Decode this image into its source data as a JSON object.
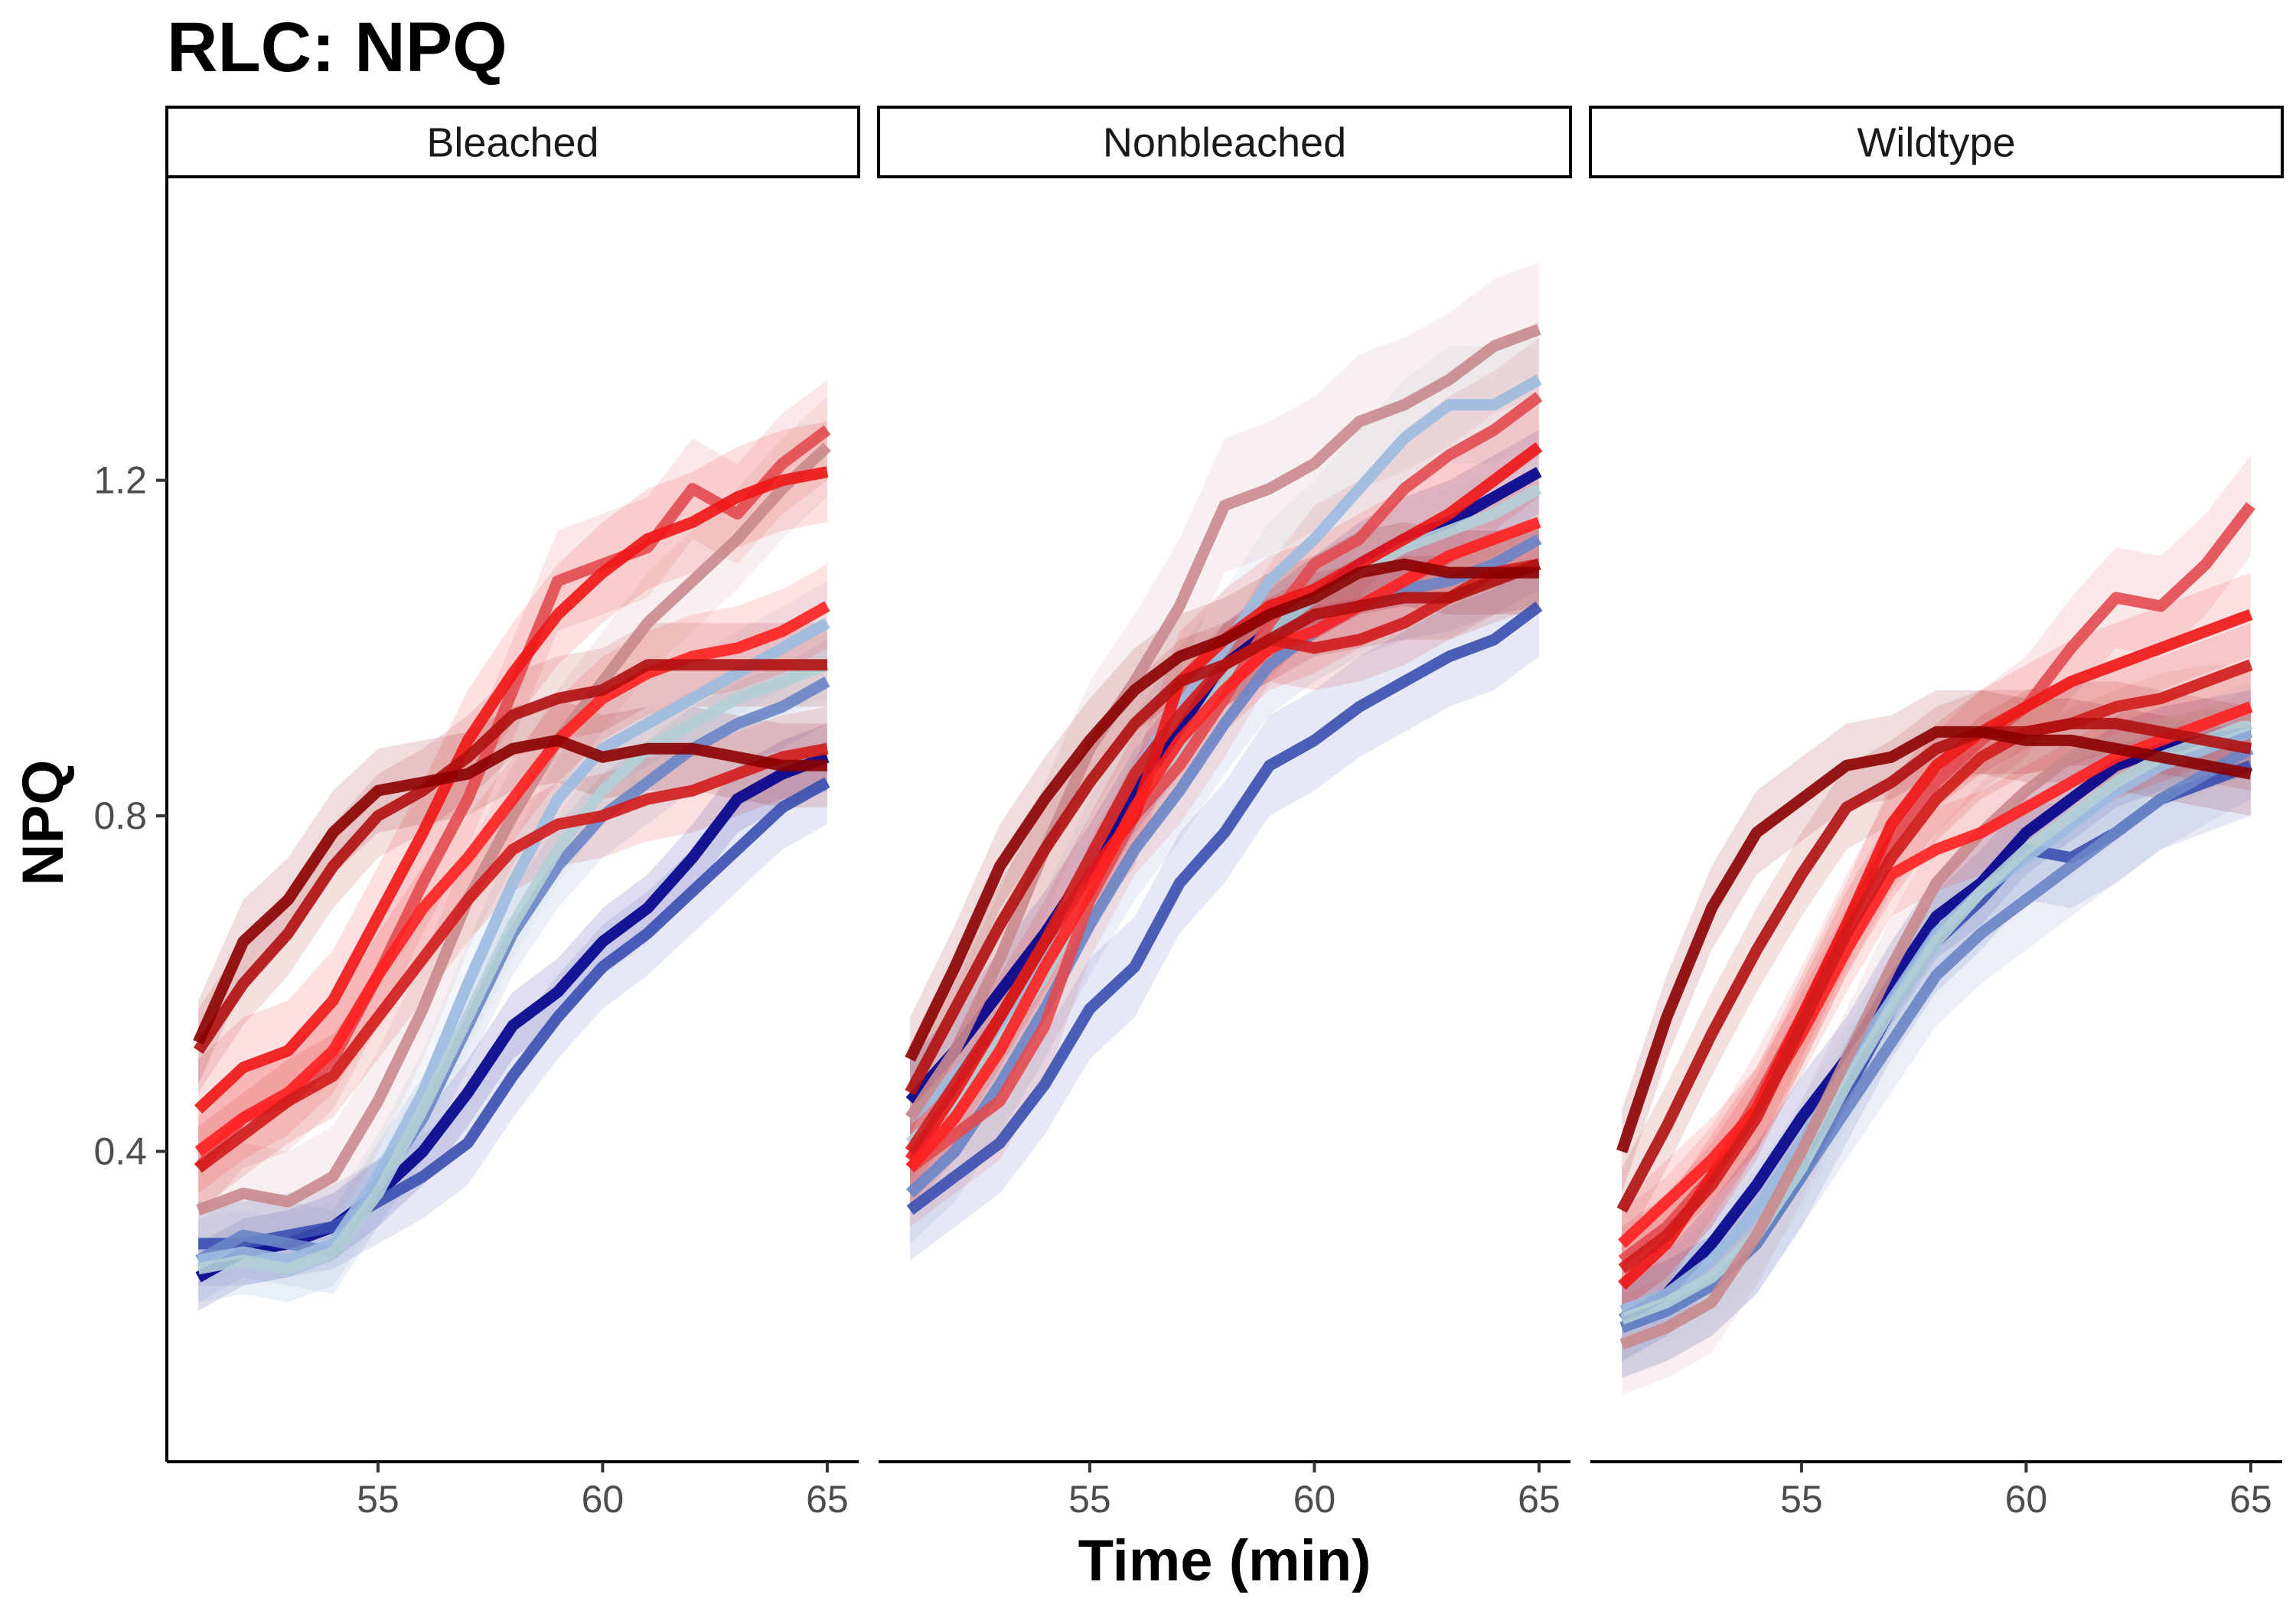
{
  "chart_data": {
    "type": "line",
    "title": "RLC: NPQ",
    "xlabel": "Time (min)",
    "ylabel": "NPQ",
    "xlim": [
      50.3,
      65.7
    ],
    "ylim": [
      0.03,
      1.56
    ],
    "x_ticks": [
      55,
      60,
      65
    ],
    "y_ticks": [
      0.4,
      0.8,
      1.2
    ],
    "grid": false,
    "legend": "none",
    "x": [
      51,
      52,
      53,
      54,
      55,
      56,
      57,
      58,
      59,
      60,
      61,
      62,
      63,
      64,
      65
    ],
    "panels": [
      {
        "label": "Bleached",
        "series": [
          {
            "color": "#00008b",
            "values": [
              0.25,
              0.28,
              0.29,
              0.31,
              0.35,
              0.4,
              0.47,
              0.55,
              0.59,
              0.65,
              0.69,
              0.75,
              0.82,
              0.85,
              0.87
            ],
            "band": 0.04
          },
          {
            "color": "#3a4fb0",
            "values": [
              0.29,
              0.29,
              0.3,
              0.31,
              0.34,
              0.37,
              0.41,
              0.49,
              0.56,
              0.62,
              0.66,
              0.71,
              0.76,
              0.81,
              0.84
            ],
            "band": 0.05
          },
          {
            "color": "#6a85c6",
            "values": [
              0.27,
              0.3,
              0.29,
              0.28,
              0.36,
              0.44,
              0.55,
              0.66,
              0.74,
              0.8,
              0.84,
              0.88,
              0.91,
              0.93,
              0.96
            ],
            "band": 0.05
          },
          {
            "color": "#9bbbe0",
            "values": [
              0.27,
              0.28,
              0.27,
              0.29,
              0.37,
              0.47,
              0.6,
              0.72,
              0.82,
              0.88,
              0.91,
              0.94,
              0.97,
              1.0,
              1.03
            ],
            "band": 0.05
          },
          {
            "color": "#b2cfd6",
            "values": [
              0.26,
              0.27,
              0.26,
              0.28,
              0.35,
              0.45,
              0.56,
              0.67,
              0.76,
              0.83,
              0.88,
              0.91,
              0.94,
              0.96,
              0.98
            ],
            "band": 0.04
          },
          {
            "color": "#c98a8d",
            "values": [
              0.33,
              0.35,
              0.34,
              0.37,
              0.46,
              0.57,
              0.7,
              0.8,
              0.89,
              0.96,
              1.03,
              1.08,
              1.13,
              1.19,
              1.24
            ],
            "band": 0.06
          },
          {
            "color": "#e24a4f",
            "values": [
              0.38,
              0.44,
              0.46,
              0.51,
              0.61,
              0.72,
              0.82,
              0.95,
              1.08,
              1.1,
              1.12,
              1.19,
              1.16,
              1.22,
              1.26
            ],
            "band": 0.06
          },
          {
            "color": "#f01515",
            "values": [
              0.45,
              0.5,
              0.52,
              0.58,
              0.68,
              0.78,
              0.89,
              0.97,
              1.04,
              1.09,
              1.13,
              1.15,
              1.18,
              1.2,
              1.21
            ],
            "band": 0.06
          },
          {
            "color": "#ff2020",
            "values": [
              0.4,
              0.44,
              0.47,
              0.52,
              0.61,
              0.69,
              0.75,
              0.82,
              0.89,
              0.94,
              0.97,
              0.99,
              1.0,
              1.02,
              1.05
            ],
            "band": 0.05
          },
          {
            "color": "#d21b1b",
            "values": [
              0.38,
              0.42,
              0.46,
              0.49,
              0.56,
              0.63,
              0.7,
              0.76,
              0.79,
              0.8,
              0.82,
              0.83,
              0.85,
              0.87,
              0.88
            ],
            "band": 0.05
          },
          {
            "color": "#b01010",
            "values": [
              0.52,
              0.6,
              0.66,
              0.74,
              0.8,
              0.83,
              0.87,
              0.92,
              0.94,
              0.95,
              0.98,
              0.98,
              0.98,
              0.98,
              0.98
            ],
            "band": 0.05
          },
          {
            "color": "#8b0000",
            "values": [
              0.53,
              0.65,
              0.7,
              0.78,
              0.83,
              0.84,
              0.85,
              0.88,
              0.89,
              0.87,
              0.88,
              0.88,
              0.87,
              0.86,
              0.86
            ],
            "band": 0.05
          }
        ]
      },
      {
        "label": "Nonbleached",
        "series": [
          {
            "color": "#00008b",
            "values": [
              0.46,
              0.52,
              0.59,
              0.66,
              0.74,
              0.83,
              0.9,
              0.98,
              1.02,
              1.06,
              1.1,
              1.13,
              1.15,
              1.18,
              1.21
            ],
            "band": 0.05
          },
          {
            "color": "#3a4fb0",
            "values": [
              0.33,
              0.37,
              0.41,
              0.48,
              0.57,
              0.62,
              0.72,
              0.78,
              0.86,
              0.89,
              0.93,
              0.96,
              0.99,
              1.01,
              1.05
            ],
            "band": 0.06
          },
          {
            "color": "#6a85c6",
            "values": [
              0.35,
              0.4,
              0.48,
              0.57,
              0.67,
              0.76,
              0.83,
              0.91,
              0.98,
              1.02,
              1.05,
              1.07,
              1.08,
              1.1,
              1.13
            ],
            "band": 0.06
          },
          {
            "color": "#9bbbe0",
            "values": [
              0.44,
              0.49,
              0.55,
              0.64,
              0.75,
              0.85,
              0.93,
              1.0,
              1.08,
              1.13,
              1.19,
              1.25,
              1.29,
              1.29,
              1.32
            ],
            "band": 0.07
          },
          {
            "color": "#b2cfd6",
            "values": [
              0.41,
              0.46,
              0.53,
              0.61,
              0.71,
              0.8,
              0.88,
              0.96,
              1.02,
              1.06,
              1.09,
              1.12,
              1.14,
              1.16,
              1.19
            ],
            "band": 0.05
          },
          {
            "color": "#c98a8d",
            "values": [
              0.44,
              0.52,
              0.63,
              0.76,
              0.88,
              0.96,
              1.05,
              1.17,
              1.19,
              1.22,
              1.27,
              1.29,
              1.32,
              1.36,
              1.38
            ],
            "band": 0.08
          },
          {
            "color": "#e24a4f",
            "values": [
              0.38,
              0.42,
              0.46,
              0.55,
              0.7,
              0.8,
              0.86,
              0.94,
              1.03,
              1.1,
              1.13,
              1.19,
              1.23,
              1.26,
              1.3
            ],
            "band": 0.07
          },
          {
            "color": "#f01515",
            "values": [
              0.39,
              0.47,
              0.56,
              0.65,
              0.73,
              0.8,
              0.96,
              1.01,
              1.05,
              1.07,
              1.1,
              1.13,
              1.16,
              1.2,
              1.24
            ],
            "band": 0.06
          },
          {
            "color": "#ff2020",
            "values": [
              0.38,
              0.44,
              0.52,
              0.62,
              0.71,
              0.81,
              0.89,
              0.95,
              1.0,
              1.02,
              1.05,
              1.08,
              1.11,
              1.13,
              1.15
            ],
            "band": 0.05
          },
          {
            "color": "#d21b1b",
            "values": [
              0.4,
              0.48,
              0.56,
              0.65,
              0.75,
              0.85,
              0.92,
              0.98,
              1.01,
              1.0,
              1.01,
              1.03,
              1.06,
              1.09,
              1.1
            ],
            "band": 0.05
          },
          {
            "color": "#b01010",
            "values": [
              0.47,
              0.57,
              0.67,
              0.76,
              0.84,
              0.91,
              0.96,
              0.98,
              1.01,
              1.04,
              1.05,
              1.06,
              1.06,
              1.08,
              1.1
            ],
            "band": 0.05
          },
          {
            "color": "#8b0000",
            "values": [
              0.51,
              0.62,
              0.74,
              0.82,
              0.89,
              0.95,
              0.99,
              1.01,
              1.04,
              1.06,
              1.09,
              1.1,
              1.09,
              1.09,
              1.09
            ],
            "band": 0.05
          }
        ]
      },
      {
        "label": "Wildtype",
        "series": [
          {
            "color": "#00008b",
            "values": [
              0.2,
              0.23,
              0.29,
              0.36,
              0.44,
              0.51,
              0.6,
              0.68,
              0.72,
              0.78,
              0.82,
              0.86,
              0.88,
              0.89,
              0.9
            ],
            "band": 0.05
          },
          {
            "color": "#3a4fb0",
            "values": [
              0.19,
              0.21,
              0.24,
              0.29,
              0.37,
              0.47,
              0.57,
              0.65,
              0.7,
              0.76,
              0.75,
              0.78,
              0.82,
              0.84,
              0.86
            ],
            "band": 0.06
          },
          {
            "color": "#6a85c6",
            "values": [
              0.19,
              0.21,
              0.24,
              0.29,
              0.37,
              0.45,
              0.53,
              0.61,
              0.66,
              0.7,
              0.74,
              0.78,
              0.82,
              0.85,
              0.88
            ],
            "band": 0.06
          },
          {
            "color": "#9bbbe0",
            "values": [
              0.21,
              0.23,
              0.27,
              0.33,
              0.41,
              0.5,
              0.58,
              0.66,
              0.71,
              0.75,
              0.79,
              0.83,
              0.86,
              0.88,
              0.9
            ],
            "band": 0.05
          },
          {
            "color": "#b2cfd6",
            "values": [
              0.2,
              0.22,
              0.25,
              0.3,
              0.38,
              0.48,
              0.57,
              0.65,
              0.71,
              0.76,
              0.8,
              0.84,
              0.87,
              0.89,
              0.91
            ],
            "band": 0.05
          },
          {
            "color": "#c98a8d",
            "values": [
              0.17,
              0.19,
              0.22,
              0.3,
              0.4,
              0.51,
              0.62,
              0.72,
              0.78,
              0.83,
              0.87,
              0.89,
              0.91,
              0.92,
              0.92
            ],
            "band": 0.06
          },
          {
            "color": "#e24a4f",
            "values": [
              0.27,
              0.31,
              0.37,
              0.46,
              0.56,
              0.67,
              0.77,
              0.84,
              0.89,
              0.93,
              1.0,
              1.06,
              1.05,
              1.1,
              1.17
            ],
            "band": 0.06
          },
          {
            "color": "#f01515",
            "values": [
              0.24,
              0.29,
              0.37,
              0.45,
              0.56,
              0.67,
              0.79,
              0.86,
              0.9,
              0.93,
              0.96,
              0.98,
              1.0,
              1.02,
              1.04
            ],
            "band": 0.05
          },
          {
            "color": "#ff2020",
            "values": [
              0.29,
              0.34,
              0.39,
              0.45,
              0.54,
              0.64,
              0.73,
              0.76,
              0.78,
              0.81,
              0.84,
              0.87,
              0.89,
              0.91,
              0.93
            ],
            "band": 0.05
          },
          {
            "color": "#d21b1b",
            "values": [
              0.26,
              0.3,
              0.36,
              0.44,
              0.55,
              0.66,
              0.75,
              0.82,
              0.87,
              0.9,
              0.91,
              0.93,
              0.94,
              0.96,
              0.98
            ],
            "band": 0.05
          },
          {
            "color": "#b01010",
            "values": [
              0.33,
              0.43,
              0.54,
              0.64,
              0.73,
              0.81,
              0.84,
              0.88,
              0.9,
              0.9,
              0.91,
              0.91,
              0.9,
              0.89,
              0.88
            ],
            "band": 0.05
          },
          {
            "color": "#8b0000",
            "values": [
              0.4,
              0.56,
              0.69,
              0.78,
              0.82,
              0.86,
              0.87,
              0.9,
              0.9,
              0.89,
              0.89,
              0.88,
              0.87,
              0.86,
              0.85
            ],
            "band": 0.05
          }
        ]
      }
    ]
  }
}
